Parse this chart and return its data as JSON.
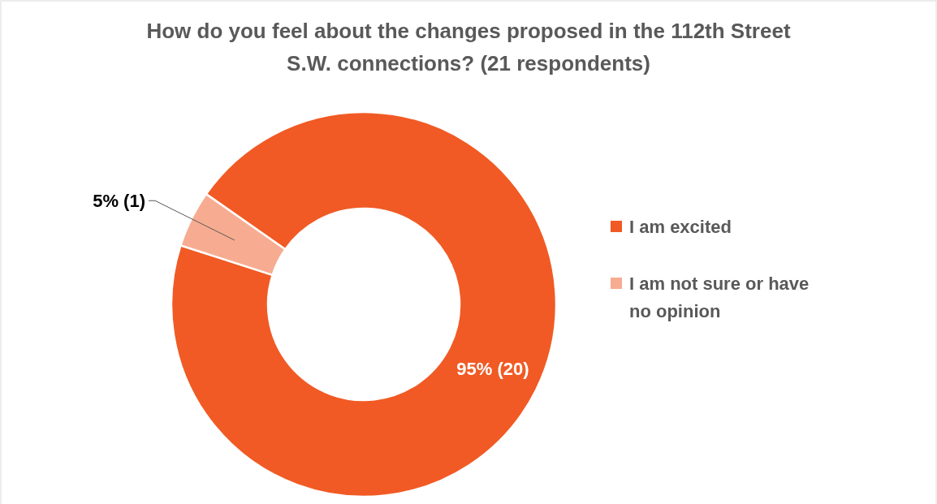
{
  "chart_data": {
    "type": "donut",
    "title": "How do you feel about the changes proposed in the 112th Street S.W. connections? (21 respondents)",
    "categories": [
      "I am excited",
      "I am not sure or have no opinion"
    ],
    "values": [
      20,
      1
    ],
    "value_labels": [
      "95% (20)",
      "5% (1)"
    ],
    "colors": [
      "#f15a24",
      "#f7ac91"
    ],
    "legend": "right"
  }
}
